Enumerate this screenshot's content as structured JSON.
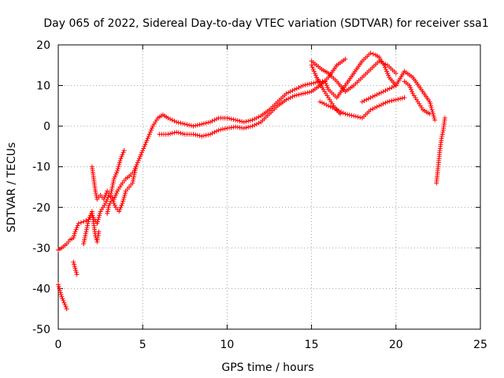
{
  "chart_data": {
    "type": "scatter",
    "title": "Day 065 of 2022, Sidereal Day-to-day VTEC variation (SDTVAR) for receiver ssa1",
    "xlabel": "GPS time / hours",
    "ylabel": "SDTVAR / TECUs",
    "xlim": [
      0,
      25
    ],
    "ylim": [
      -50,
      20
    ],
    "x_ticks": [
      0,
      5,
      10,
      15,
      20,
      25
    ],
    "y_ticks": [
      -50,
      -40,
      -30,
      -20,
      -10,
      0,
      10,
      20
    ],
    "x_tick_labels": [
      "0",
      "5",
      "10",
      "15",
      "20",
      "25"
    ],
    "y_tick_labels": [
      "-50",
      "-40",
      "-30",
      "-20",
      "-10",
      "0",
      "10",
      "20"
    ],
    "grid": true,
    "marker": "plus",
    "color": "#ff0000",
    "series": [
      {
        "name": "main-upper",
        "x": [
          0.0,
          0.2,
          0.5,
          0.7,
          0.9,
          1.0,
          1.2,
          1.5,
          1.8,
          2.0,
          2.3,
          2.5,
          2.8,
          3.0,
          3.3,
          3.5,
          3.8,
          4.0,
          4.3,
          4.5,
          4.8,
          5.0,
          5.3,
          5.6,
          5.9,
          6.2,
          6.5,
          7.0,
          7.5,
          8.0,
          8.5,
          9.0,
          9.5,
          10.0,
          10.5,
          11.0,
          11.5,
          12.0,
          12.5,
          13.0,
          13.5,
          14.0,
          14.5,
          15.0,
          15.5,
          15.8,
          16.0,
          16.5,
          17.0,
          17.5,
          18.0,
          18.5,
          18.8,
          19.0,
          19.3,
          19.6,
          20.0
        ],
        "y": [
          -30.5,
          -30,
          -29,
          -28,
          -27.5,
          -26,
          -24,
          -23.5,
          -23,
          -22,
          -24,
          -21,
          -19,
          -17,
          -18,
          -16,
          -14,
          -13,
          -12,
          -11,
          -8,
          -6,
          -3,
          0,
          2,
          2.8,
          2,
          1,
          0.5,
          0,
          0.5,
          1,
          2,
          2,
          1.5,
          1,
          1.5,
          2.5,
          4,
          6,
          8,
          9,
          10,
          10.5,
          11,
          11,
          9,
          7,
          10,
          13,
          16,
          18,
          17.5,
          17,
          15,
          12,
          10
        ]
      },
      {
        "name": "main-lower",
        "x": [
          6.0,
          6.5,
          7.0,
          7.5,
          8.0,
          8.5,
          9.0,
          9.5,
          10.0,
          10.5,
          11.0,
          11.5,
          12.0,
          12.5,
          13.0,
          13.5,
          14.0,
          14.5,
          15.0,
          15.5,
          16.0,
          16.5,
          17.0
        ],
        "y": [
          -2,
          -2,
          -1.5,
          -2,
          -2,
          -2.5,
          -2,
          -1,
          -0.5,
          -0.2,
          -0.5,
          0,
          1,
          3,
          5,
          6.5,
          7.5,
          8,
          8.5,
          10,
          12,
          15,
          16.5
        ]
      },
      {
        "name": "dawn-lower",
        "x": [
          0.0,
          0.1,
          0.2,
          0.3,
          0.4,
          0.5
        ],
        "y": [
          -39,
          -40.5,
          -42,
          -43,
          -44,
          -45
        ]
      },
      {
        "name": "early-gap",
        "x": [
          0.9,
          1.0,
          1.1
        ],
        "y": [
          -33.5,
          -35,
          -36.5
        ]
      },
      {
        "name": "early-spikes-a",
        "x": [
          1.5,
          1.6,
          1.7,
          1.8,
          2.0,
          2.1,
          2.2,
          2.3,
          2.4
        ],
        "y": [
          -29,
          -27,
          -25,
          -23,
          -21,
          -24,
          -27,
          -28.5,
          -26
        ]
      },
      {
        "name": "early-spikes-b",
        "x": [
          2.0,
          2.1,
          2.2,
          2.3,
          2.5,
          2.7,
          2.9,
          3.1,
          3.3,
          3.5,
          3.7,
          3.9
        ],
        "y": [
          -10,
          -13,
          -16,
          -18,
          -17,
          -18,
          -16,
          -17,
          -13,
          -11,
          -8,
          -6
        ]
      },
      {
        "name": "early-spikes-c",
        "x": [
          2.9,
          3.0,
          3.2,
          3.4,
          3.6,
          3.8,
          4.0,
          4.2,
          4.4,
          4.6
        ],
        "y": [
          -21.5,
          -19.5,
          -18,
          -20,
          -21,
          -19,
          -16,
          -15,
          -14,
          -10
        ]
      },
      {
        "name": "evening-upper",
        "x": [
          15.0,
          15.3,
          15.6,
          16.0,
          16.5,
          17.0,
          17.5,
          18.0,
          18.5,
          19.0,
          19.5,
          20.0
        ],
        "y": [
          16,
          15,
          14,
          13,
          11,
          8.5,
          10,
          12,
          14,
          16,
          15,
          13
        ]
      },
      {
        "name": "evening-lower",
        "x": [
          15.5,
          16.0,
          16.5,
          17.0,
          17.5,
          18.0,
          18.5,
          19.0,
          19.5,
          20.0,
          20.5
        ],
        "y": [
          6,
          5,
          4,
          3,
          2.5,
          2,
          4,
          5,
          6,
          6.5,
          7
        ]
      },
      {
        "name": "evening-mid",
        "x": [
          15.0,
          15.3,
          15.7,
          16.0,
          16.3,
          16.7
        ],
        "y": [
          15,
          12,
          9,
          7,
          5,
          3
        ]
      },
      {
        "name": "late-descent",
        "x": [
          18.0,
          18.5,
          19.0,
          19.5,
          20.0,
          20.5,
          21.0,
          21.5,
          22.0,
          22.3
        ],
        "y": [
          6,
          7,
          8,
          9,
          10,
          13.5,
          12,
          9,
          6,
          1.5
        ]
      },
      {
        "name": "late-branch",
        "x": [
          20.5,
          20.8,
          21.0,
          21.3,
          21.6,
          22.0
        ],
        "y": [
          11,
          10,
          8,
          6,
          4,
          3
        ]
      },
      {
        "name": "tail-drop",
        "x": [
          22.4,
          22.5,
          22.6,
          22.7,
          22.8,
          22.9
        ],
        "y": [
          -14,
          -10,
          -6,
          -3,
          -1,
          2
        ]
      }
    ]
  }
}
